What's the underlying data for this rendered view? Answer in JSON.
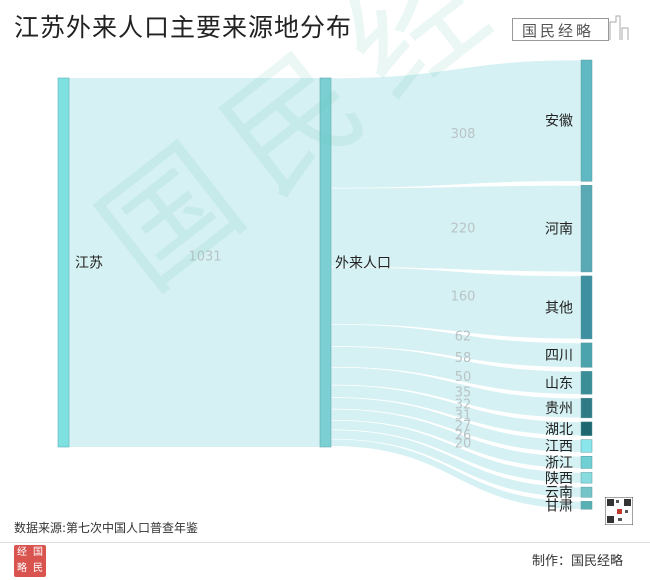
{
  "title": "江苏外来人口主要来源地分布",
  "brand": "国民经略",
  "brand_icon": "skyline-icon",
  "watermark": "国民经略",
  "source": "数据来源:第七次中国人口普查年鉴",
  "credit": "制作：国民经略",
  "logo_badge": [
    "经",
    "国",
    "略",
    "民"
  ],
  "colors": {
    "source_node": "#7fe0e0",
    "middle_node": "#7cd0d4",
    "link": "#d6f1f3",
    "node_palette": [
      "#5fb8c2",
      "#5aaab6",
      "#3e8f9f",
      "#4aa3ad",
      "#3b8e96",
      "#2f7a85",
      "#1e6670",
      "#8ae6ea",
      "#6fcfd3",
      "#88dce0",
      "#74c4c8",
      "#5ab1b5"
    ]
  },
  "chart_data": {
    "type": "sankey",
    "title": "江苏外来人口主要来源地分布",
    "source_node": {
      "name": "江苏",
      "value": 1031
    },
    "middle_node": {
      "name": "外来人口",
      "value": 1031
    },
    "targets": [
      {
        "name": "安徽",
        "value": 308
      },
      {
        "name": "河南",
        "value": 220
      },
      {
        "name": "其他",
        "value": 160
      },
      {
        "name": "四川",
        "value": 62
      },
      {
        "name": "山东",
        "value": 58
      },
      {
        "name": "贵州",
        "value": 50
      },
      {
        "name": "湖北",
        "value": 35
      },
      {
        "name": "江西",
        "value": 32
      },
      {
        "name": "浙江",
        "value": 31
      },
      {
        "name": "陕西",
        "value": 27
      },
      {
        "name": "云南",
        "value": 26
      },
      {
        "name": "甘肃",
        "value": 20
      }
    ],
    "link_label_first": "1031"
  }
}
